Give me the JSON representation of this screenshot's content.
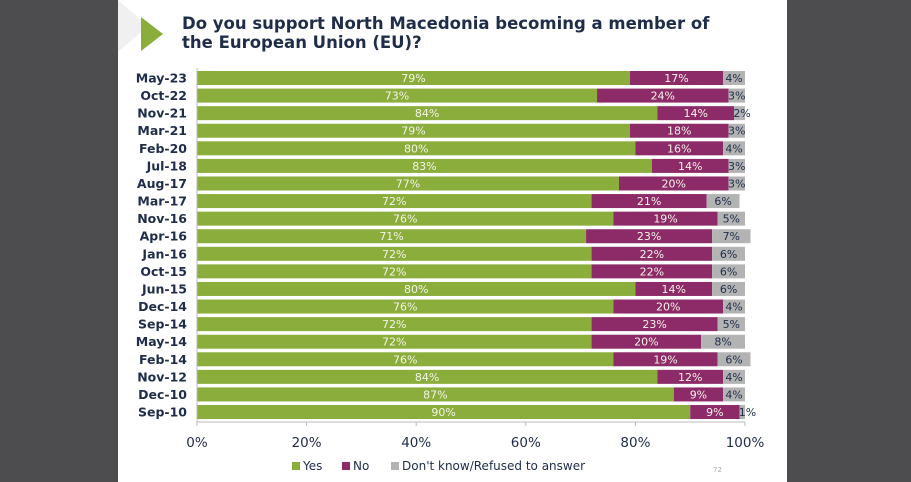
{
  "chart_data": {
    "type": "bar",
    "orientation": "horizontal",
    "stacked": true,
    "title": "Do you support North Macedonia becoming a member of the European Union (EU)?",
    "categories": [
      "May-23",
      "Oct-22",
      "Nov-21",
      "Mar-21",
      "Feb-20",
      "Jul-18",
      "Aug-17",
      "Mar-17",
      "Nov-16",
      "Apr-16",
      "Jan-16",
      "Oct-15",
      "Jun-15",
      "Dec-14",
      "Sep-14",
      "May-14",
      "Feb-14",
      "Nov-12",
      "Dec-10",
      "Sep-10"
    ],
    "series": [
      {
        "name": "Yes",
        "color": "#8aad3b",
        "values": [
          79,
          73,
          84,
          79,
          80,
          83,
          77,
          72,
          76,
          71,
          72,
          72,
          80,
          76,
          72,
          72,
          76,
          84,
          87,
          90
        ]
      },
      {
        "name": "No",
        "color": "#8c2b67",
        "values": [
          17,
          24,
          14,
          18,
          16,
          14,
          20,
          21,
          19,
          23,
          22,
          22,
          14,
          20,
          23,
          20,
          19,
          12,
          9,
          9
        ]
      },
      {
        "name": "Don't know/Refused to answer",
        "color": "#b3b3b3",
        "values": [
          4,
          3,
          2,
          3,
          4,
          3,
          3,
          6,
          5,
          7,
          6,
          6,
          6,
          4,
          5,
          8,
          6,
          4,
          4,
          1
        ]
      }
    ],
    "xlim": [
      0,
      100
    ],
    "x_ticks": [
      "0%",
      "20%",
      "40%",
      "60%",
      "80%",
      "100%"
    ],
    "legend_position": "bottom",
    "grid": false
  },
  "page_number": "72"
}
